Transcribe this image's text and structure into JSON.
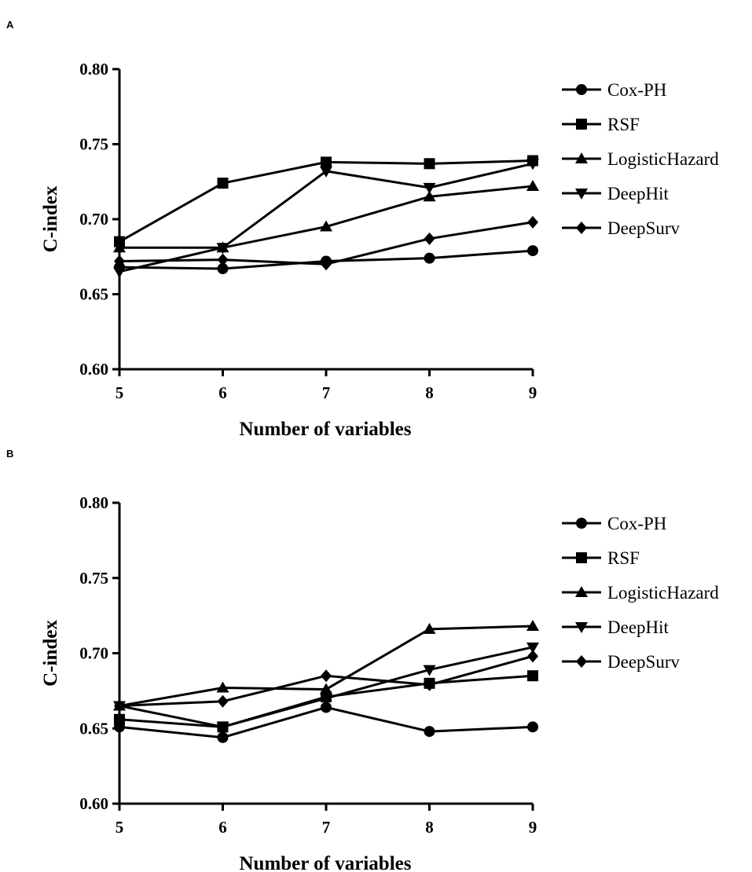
{
  "chart_data": [
    {
      "panel_label": "A",
      "type": "line",
      "xlabel": "Number of variables",
      "ylabel": "C-index",
      "x": [
        5,
        6,
        7,
        8,
        9
      ],
      "x_tick_labels": [
        "5",
        "6",
        "7",
        "8",
        "9"
      ],
      "ylim": [
        0.6,
        0.8
      ],
      "y_tick_labels": [
        "0.60",
        "0.65",
        "0.70",
        "0.75",
        "0.80"
      ],
      "y_ticks": [
        0.6,
        0.65,
        0.7,
        0.75,
        0.8
      ],
      "legend_position": "right",
      "series": [
        {
          "name": "Cox-PH",
          "marker": "circle",
          "values": [
            0.668,
            0.667,
            0.672,
            0.674,
            0.679
          ]
        },
        {
          "name": "RSF",
          "marker": "square",
          "values": [
            0.685,
            0.724,
            0.738,
            0.737,
            0.739
          ]
        },
        {
          "name": "LogisticHazard",
          "marker": "triangle-up",
          "values": [
            0.681,
            0.681,
            0.695,
            0.715,
            0.722
          ]
        },
        {
          "name": "DeepHit",
          "marker": "triangle-down",
          "values": [
            0.665,
            0.681,
            0.732,
            0.721,
            0.737
          ]
        },
        {
          "name": "DeepSurv",
          "marker": "diamond",
          "values": [
            0.672,
            0.673,
            0.67,
            0.687,
            0.698
          ]
        }
      ]
    },
    {
      "panel_label": "B",
      "type": "line",
      "xlabel": "Number of variables",
      "ylabel": "C-index",
      "x": [
        5,
        6,
        7,
        8,
        9
      ],
      "x_tick_labels": [
        "5",
        "6",
        "7",
        "8",
        "9"
      ],
      "ylim": [
        0.6,
        0.8
      ],
      "y_tick_labels": [
        "0.60",
        "0.65",
        "0.70",
        "0.75",
        "0.80"
      ],
      "y_ticks": [
        0.6,
        0.65,
        0.7,
        0.75,
        0.8
      ],
      "legend_position": "right",
      "series": [
        {
          "name": "Cox-PH",
          "marker": "circle",
          "values": [
            0.651,
            0.644,
            0.664,
            0.648,
            0.651
          ]
        },
        {
          "name": "RSF",
          "marker": "square",
          "values": [
            0.656,
            0.651,
            0.671,
            0.68,
            0.685
          ]
        },
        {
          "name": "LogisticHazard",
          "marker": "triangle-up",
          "values": [
            0.665,
            0.677,
            0.676,
            0.716,
            0.718
          ]
        },
        {
          "name": "DeepHit",
          "marker": "triangle-down",
          "values": [
            0.665,
            0.651,
            0.67,
            0.689,
            0.704
          ]
        },
        {
          "name": "DeepSurv",
          "marker": "diamond",
          "values": [
            0.665,
            0.668,
            0.685,
            0.679,
            0.698
          ]
        }
      ]
    }
  ]
}
